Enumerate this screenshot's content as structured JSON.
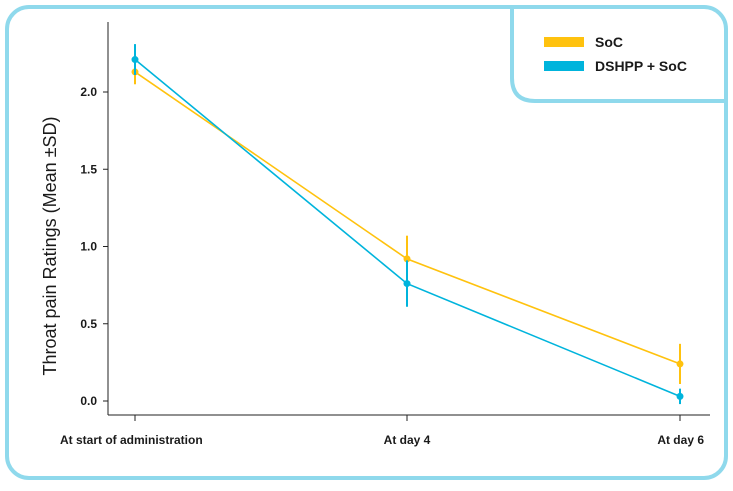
{
  "chart_data": {
    "type": "line",
    "title": "",
    "xlabel": "",
    "ylabel": "Throat pain Ratings (Mean ±SD)",
    "categories": [
      "At start of administration",
      "At day 4",
      "At day 6"
    ],
    "y_ticks": [
      "0.0",
      "0.5",
      "1.0",
      "1.5",
      "2.0"
    ],
    "ylim": [
      -0.1,
      2.35
    ],
    "grid": false,
    "legend_position": "top-right",
    "series": [
      {
        "name": "SoC",
        "color": "#FFC20E",
        "values": [
          2.13,
          0.92,
          0.24
        ],
        "sd": [
          0.08,
          0.15,
          0.13
        ]
      },
      {
        "name": "DSHPP + SoC",
        "color": "#00B4DC",
        "values": [
          2.21,
          0.76,
          0.03
        ],
        "sd": [
          0.1,
          0.15,
          0.05
        ]
      }
    ]
  },
  "colors": {
    "frame": "#8FD9EC",
    "axis": "#222222"
  }
}
